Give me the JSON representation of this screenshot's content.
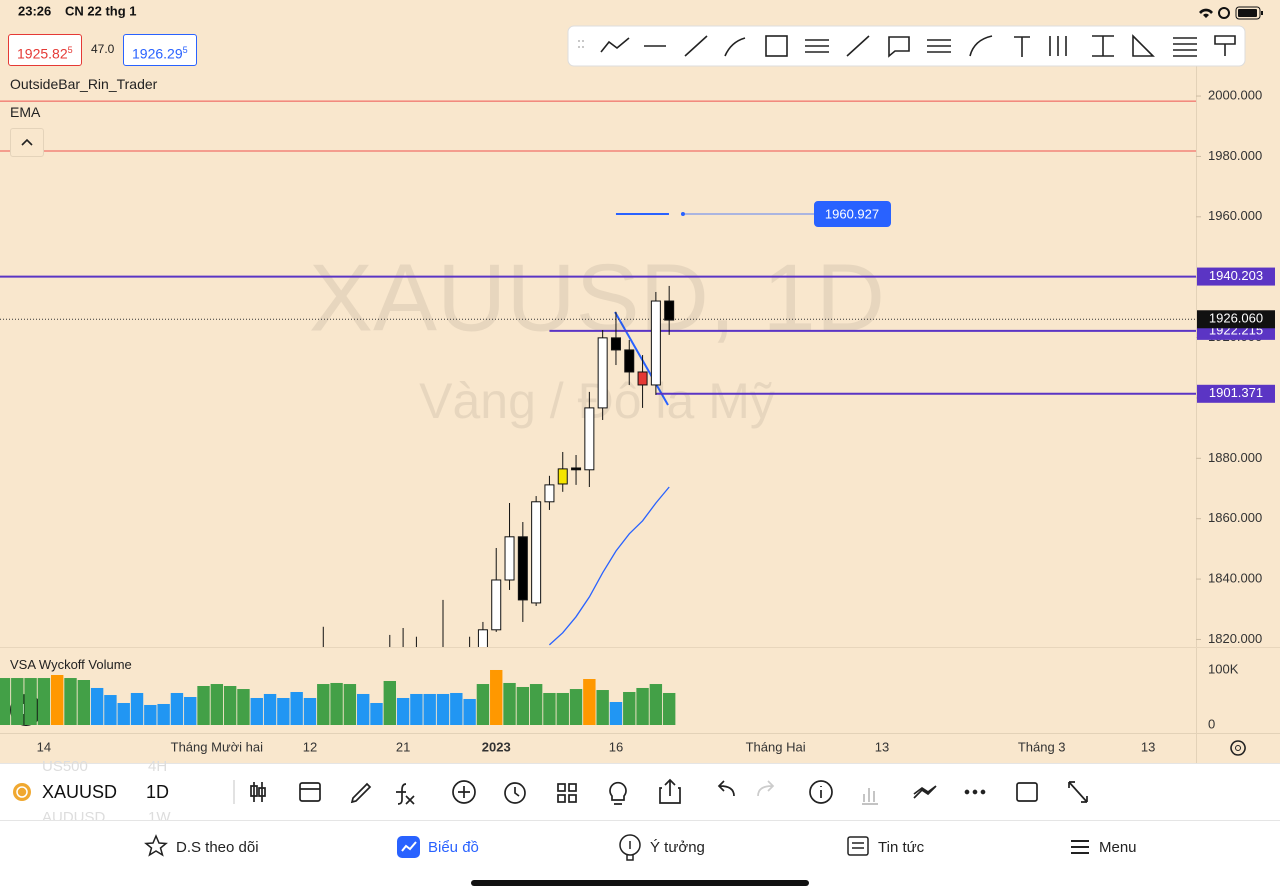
{
  "status_bar": {
    "time": "23:26",
    "date": "CN 22 thg 1"
  },
  "quote": {
    "bid": "1925.82",
    "bid_pip": "5",
    "spread": "47.0",
    "ask": "1926.29",
    "ask_pip": "5"
  },
  "indicators": [
    "OutsideBar_Rin_Trader",
    "EMA"
  ],
  "chart_data": {
    "type": "candlestick",
    "watermark": "XAUUSD, 1D",
    "watermark_subtitle": "Vàng / Đô la Mỹ",
    "xlim": [
      -0.3,
      89.6
    ],
    "xticks": [
      {
        "value": 3,
        "label": "14"
      },
      {
        "value": 16,
        "label": "Tháng Mười hai"
      },
      {
        "value": 23,
        "label": "12"
      },
      {
        "value": 30,
        "label": "21"
      },
      {
        "value": 37,
        "label": "2023"
      },
      {
        "value": 46,
        "label": "16"
      },
      {
        "value": 58,
        "label": "Tháng Hai"
      },
      {
        "value": 66,
        "label": "13"
      },
      {
        "value": 78,
        "label": "Tháng 3"
      },
      {
        "value": 86,
        "label": "13"
      }
    ],
    "ylim": [
      1817.5,
      2023.2
    ],
    "yticks": [
      {
        "value": 2000,
        "label": "2000.000"
      },
      {
        "value": 1980,
        "label": "1980.000"
      },
      {
        "value": 1960,
        "label": "1960.000"
      },
      {
        "value": 1940,
        "label": "1940.000"
      },
      {
        "value": 1920,
        "label": "1920.000"
      },
      {
        "value": 1900,
        "label": "1900.000"
      },
      {
        "value": 1880,
        "label": "1880.000"
      },
      {
        "value": 1860,
        "label": "1860.000"
      },
      {
        "value": 1840,
        "label": "1840.000"
      },
      {
        "value": 1820,
        "label": "1820.000"
      }
    ],
    "open": [
      null,
      null,
      null,
      null,
      null,
      null,
      null,
      null,
      null,
      null,
      null,
      null,
      null,
      null,
      null,
      null,
      null,
      null,
      null,
      null,
      null,
      null,
      null,
      null,
      1810,
      null,
      null,
      null,
      null,
      1808,
      1812,
      1810,
      null,
      1812,
      null,
      1814,
      1814,
      1823.2,
      1839.7,
      1854.0,
      1832.1,
      1865.6,
      1871.5,
      1876.2,
      1876.2,
      1896.7,
      1919.9,
      1915.9,
      1908.6,
      1904.3,
      1932.1
    ],
    "high": [
      null,
      null,
      null,
      null,
      null,
      null,
      null,
      null,
      null,
      null,
      null,
      null,
      null,
      null,
      null,
      null,
      null,
      null,
      null,
      null,
      null,
      null,
      null,
      null,
      1824.2,
      null,
      null,
      null,
      null,
      1821.5,
      1823.8,
      1820.9,
      null,
      1833.1,
      null,
      1820.9,
      1825.8,
      1850.3,
      1865.2,
      1858.9,
      1867.5,
      1874.2,
      1882.1,
      1881.1,
      1902.0,
      1922.5,
      1928.5,
      1919.2,
      1914.2,
      1935.1,
      1937.1
    ],
    "low": [
      null,
      null,
      null,
      null,
      null,
      null,
      null,
      null,
      null,
      null,
      null,
      null,
      null,
      null,
      null,
      null,
      null,
      null,
      null,
      null,
      null,
      null,
      null,
      null,
      1800,
      null,
      null,
      null,
      null,
      1800,
      1805,
      1802,
      null,
      1805,
      null,
      1808,
      1810,
      1822.5,
      1836.4,
      1825.8,
      1831.1,
      1862.9,
      1868.9,
      1871.2,
      1870.5,
      1892.7,
      1910.9,
      1904.3,
      1896.7,
      1901.0,
      1920.9
    ],
    "close": [
      null,
      null,
      null,
      null,
      null,
      null,
      null,
      null,
      null,
      null,
      null,
      null,
      null,
      null,
      null,
      null,
      null,
      null,
      null,
      null,
      null,
      null,
      null,
      null,
      1815,
      null,
      null,
      null,
      null,
      1812,
      1815,
      1814,
      null,
      1816,
      null,
      1816,
      1823.2,
      1839.7,
      1854.0,
      1833.1,
      1865.6,
      1871.2,
      1876.5,
      1876.8,
      1896.7,
      1919.9,
      1915.9,
      1908.6,
      1904.3,
      1932.1,
      1925.8
    ],
    "candle_colors": [
      null,
      null,
      null,
      null,
      null,
      null,
      null,
      null,
      null,
      null,
      null,
      null,
      null,
      null,
      null,
      null,
      null,
      null,
      null,
      null,
      null,
      null,
      null,
      null,
      "#ffffff",
      null,
      null,
      null,
      null,
      "#ffffff",
      "#ffffff",
      "#ffffff",
      null,
      "#ffffff",
      null,
      "#ffffff",
      "#ffffff",
      "#ffffff",
      "#ffffff",
      "#000000",
      "#ffffff",
      "#ffffff",
      "#f5e400",
      "#000000",
      "#ffffff",
      "#ffffff",
      "#000000",
      "#000000",
      "#e53935",
      "#ffffff",
      "#000000"
    ],
    "ema_color": "#2962ff",
    "ema_values": [
      null,
      null,
      null,
      null,
      null,
      null,
      null,
      null,
      null,
      null,
      null,
      null,
      null,
      null,
      null,
      null,
      null,
      null,
      null,
      null,
      null,
      null,
      null,
      null,
      null,
      null,
      null,
      null,
      null,
      null,
      null,
      null,
      null,
      null,
      null,
      null,
      null,
      null,
      null,
      null,
      null,
      1818.2,
      1822.2,
      1827.5,
      1834.1,
      1842.1,
      1849.3,
      1855.0,
      1859.3,
      1865.2,
      1870.5
    ],
    "red_lines": [
      1998.3,
      1981.8
    ],
    "levels": [
      {
        "value": 1940.203,
        "label": "1940.203",
        "from": -0.3
      },
      {
        "value": 1922.215,
        "label": "1922.215",
        "from": 41
      },
      {
        "value": 1901.371,
        "label": "1901.371",
        "from": 49
      }
    ],
    "level_color": "#5b35c4",
    "current_price": {
      "value": 1926.06,
      "label": "1926.060"
    },
    "alert": {
      "value": 1960.927,
      "label": "1960.927",
      "from": 46
    },
    "volume": {
      "title": "VSA Wyckoff Volume",
      "ylim": [
        0,
        141800
      ],
      "yticks": [
        0,
        {
          "value": 100000,
          "label": "100K"
        }
      ],
      "values": [
        85400,
        85400,
        85400,
        85400,
        90900,
        85400,
        81800,
        67300,
        54500,
        40000,
        58200,
        36400,
        38200,
        58200,
        50900,
        70900,
        74500,
        70900,
        65400,
        49100,
        56400,
        49100,
        60000,
        49100,
        74500,
        76400,
        74500,
        56400,
        40000,
        80000,
        49100,
        56400,
        56400,
        56400,
        58200,
        47300,
        74500,
        100000,
        76400,
        69100,
        74500,
        58200,
        58200,
        65400,
        83600,
        63600,
        41800,
        60000,
        67300,
        74500,
        58200
      ],
      "colors": [
        "#43a047",
        "#43a047",
        "#43a047",
        "#43a047",
        "#ff9800",
        "#43a047",
        "#43a047",
        "#2196f3",
        "#2196f3",
        "#2196f3",
        "#2196f3",
        "#2196f3",
        "#2196f3",
        "#2196f3",
        "#2196f3",
        "#43a047",
        "#43a047",
        "#43a047",
        "#43a047",
        "#2196f3",
        "#2196f3",
        "#2196f3",
        "#2196f3",
        "#2196f3",
        "#43a047",
        "#43a047",
        "#43a047",
        "#2196f3",
        "#2196f3",
        "#43a047",
        "#2196f3",
        "#2196f3",
        "#2196f3",
        "#2196f3",
        "#2196f3",
        "#2196f3",
        "#43a047",
        "#ff9800",
        "#43a047",
        "#43a047",
        "#43a047",
        "#43a047",
        "#43a047",
        "#43a047",
        "#ff9800",
        "#43a047",
        "#2196f3",
        "#43a047",
        "#43a047",
        "#43a047",
        "#43a047"
      ]
    }
  },
  "toolbar": {
    "symbol": "XAUUSD",
    "interval": "1D",
    "peek": [
      "US500",
      "4H",
      "AUDUSD",
      "1W"
    ]
  },
  "tabs": [
    "D.S theo dõi",
    "Biểu đồ",
    "Ý tưởng",
    "Tin tức",
    "Menu"
  ]
}
